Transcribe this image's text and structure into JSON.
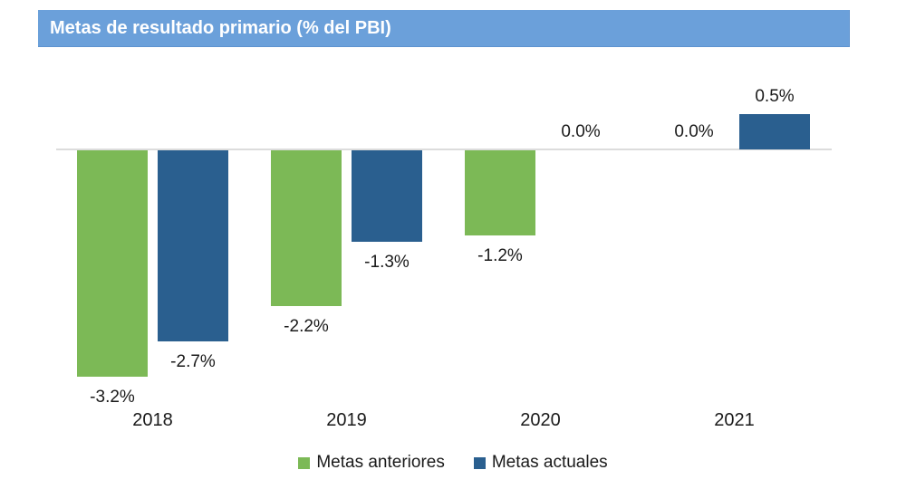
{
  "header": {
    "title": "Metas de resultado primario (% del PBI)"
  },
  "colors": {
    "header_bg": "#6BA0DA",
    "header_text": "#FFFFFF",
    "series_green": "#7CB956",
    "series_blue": "#2A5F8F",
    "axis_line": "#DCDCDC",
    "label_text": "#1A1A1A"
  },
  "chart_data": {
    "type": "bar",
    "title": "Metas de resultado primario (% del PBI)",
    "categories": [
      "2018",
      "2019",
      "2020",
      "2021"
    ],
    "series": [
      {
        "name": "Metas anteriores",
        "color_key": "series_green",
        "values": [
          -3.2,
          -2.2,
          -1.2,
          0.0
        ],
        "labels": [
          "-3.2%",
          "-2.2%",
          "-1.2%",
          "0.0%"
        ]
      },
      {
        "name": "Metas actuales",
        "color_key": "series_blue",
        "values": [
          -2.7,
          -1.3,
          0.0,
          0.5
        ],
        "labels": [
          "-2.7%",
          "-1.3%",
          "0.0%",
          "0.5%"
        ]
      }
    ],
    "ylim": [
      -3.5,
      1.0
    ],
    "grid": false,
    "legend_position": "bottom",
    "value_labels_shown": true
  }
}
